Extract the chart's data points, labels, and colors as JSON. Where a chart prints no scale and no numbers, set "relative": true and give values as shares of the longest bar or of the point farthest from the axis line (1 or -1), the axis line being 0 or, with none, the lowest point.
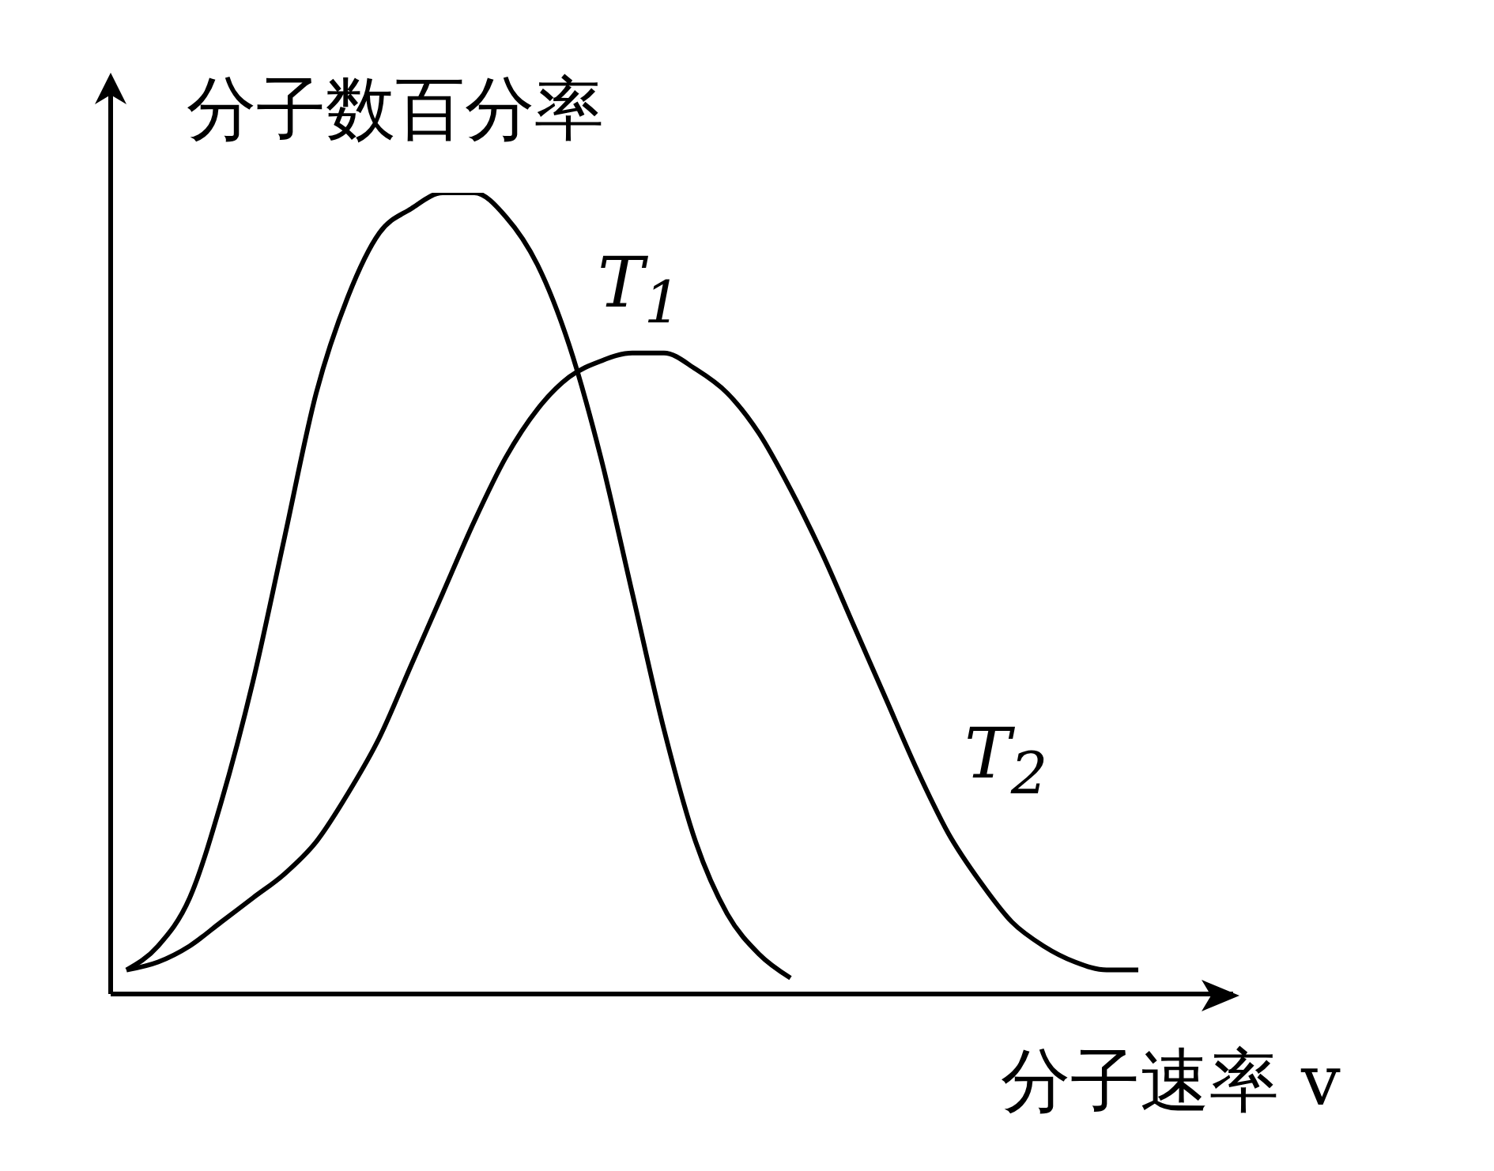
{
  "chart_data": {
    "type": "line",
    "relative": true,
    "ylabel": "分子数百分率",
    "xlabel": "分子速率 v",
    "legend": false,
    "line_style": "solid",
    "categories": [
      null,
      null,
      null,
      null,
      null,
      null,
      null,
      null,
      null,
      null,
      null,
      null,
      null,
      null,
      null,
      null,
      null,
      null,
      null,
      null,
      null,
      null,
      null,
      null,
      null,
      null,
      null,
      null,
      null,
      null,
      null,
      null,
      null
    ],
    "series": [
      {
        "name": "T$_{1}$",
        "color": "#000000",
        "values": [
          0.03,
          0.06,
          0.12,
          0.24,
          0.39,
          0.57,
          0.75,
          0.87,
          0.95,
          0.98,
          1,
          1,
          0.97,
          0.91,
          0.81,
          0.67,
          0.5,
          0.33,
          0.19,
          0.1,
          0.05,
          0.02,
          null,
          null,
          null,
          null,
          null,
          null,
          null,
          null,
          null,
          null,
          null
        ]
      },
      {
        "name": "T$_{2}$",
        "color": "#000000",
        "values": [
          0.03,
          0.04,
          0.06,
          0.09,
          0.12,
          0.15,
          0.19,
          0.25,
          0.32,
          0.41,
          0.5,
          0.59,
          0.67,
          0.73,
          0.77,
          0.79,
          0.8,
          0.8,
          0.78,
          0.75,
          0.7,
          0.63,
          0.55,
          0.46,
          0.37,
          0.28,
          0.2,
          0.14,
          0.09,
          0.06,
          0.04,
          0.03,
          0.03
        ]
      }
    ]
  }
}
